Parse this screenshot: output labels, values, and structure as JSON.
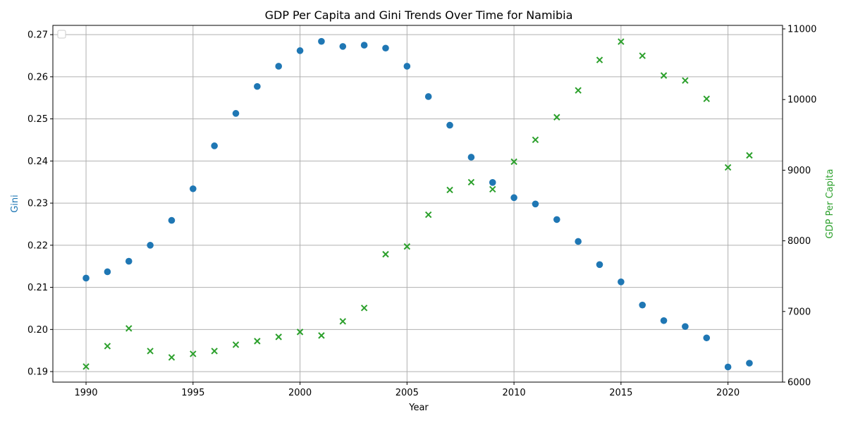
{
  "chart_data": {
    "type": "scatter",
    "title": "GDP Per Capita and Gini Trends Over Time for Namibia",
    "xlabel": "Year",
    "ylabel_left": "Gini",
    "ylabel_right": "GDP Per Capita",
    "xlim": [
      1988.45,
      2022.55
    ],
    "ylim_left": [
      0.1875,
      0.2722
    ],
    "ylim_right": [
      6000,
      11050
    ],
    "x_ticks": [
      1990,
      1995,
      2000,
      2005,
      2010,
      2015,
      2020
    ],
    "y_left_ticks": [
      0.19,
      0.2,
      0.21,
      0.22,
      0.23,
      0.24,
      0.25,
      0.26,
      0.27
    ],
    "y_right_ticks": [
      6000,
      7000,
      8000,
      9000,
      10000,
      11000
    ],
    "grid": true,
    "legend": "upper-left (empty)",
    "x": [
      1990,
      1991,
      1992,
      1993,
      1994,
      1995,
      1996,
      1997,
      1998,
      1999,
      2000,
      2001,
      2002,
      2003,
      2004,
      2005,
      2006,
      2007,
      2008,
      2009,
      2010,
      2011,
      2012,
      2013,
      2014,
      2015,
      2016,
      2017,
      2018,
      2019,
      2020,
      2021
    ],
    "series": [
      {
        "name": "Gini",
        "axis": "left",
        "marker": "circle",
        "color": "#1f77b4",
        "values": [
          0.2122,
          0.2137,
          0.2162,
          0.22,
          0.2259,
          0.2334,
          0.2436,
          0.2513,
          0.2577,
          0.2625,
          0.2662,
          0.2684,
          0.2672,
          0.2675,
          0.2668,
          0.2625,
          0.2553,
          0.2485,
          0.2409,
          0.2349,
          0.2313,
          0.2298,
          0.2261,
          0.2209,
          0.2154,
          0.2113,
          0.2058,
          0.2021,
          0.2007,
          0.198,
          0.1911,
          0.192
        ]
      },
      {
        "name": "GDP Per Capita",
        "axis": "right",
        "marker": "x",
        "color": "#2ca02c",
        "values": [
          6220,
          6510,
          6760,
          6440,
          6350,
          6400,
          6440,
          6530,
          6580,
          6640,
          6710,
          6660,
          6860,
          7050,
          7810,
          7920,
          8370,
          8720,
          8830,
          8730,
          9120,
          9430,
          9750,
          10130,
          10560,
          10820,
          10620,
          10340,
          10270,
          10010,
          9040,
          9210
        ]
      }
    ]
  }
}
